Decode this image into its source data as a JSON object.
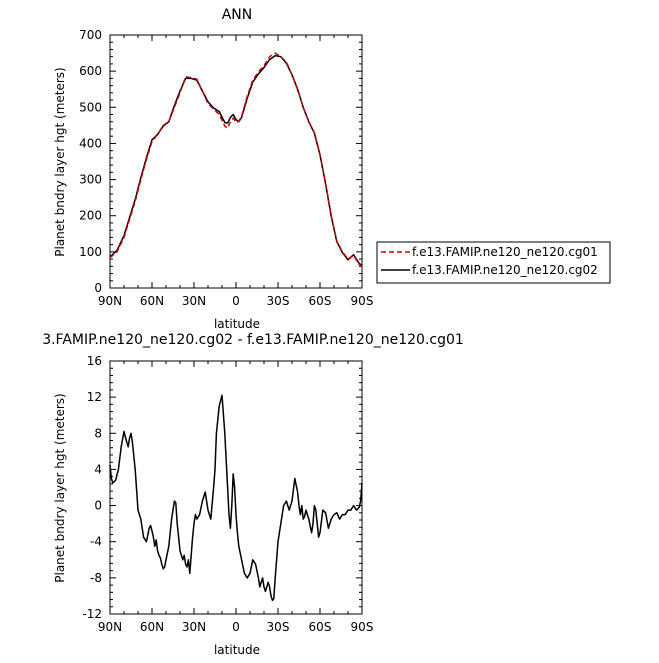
{
  "chart_data": [
    {
      "type": "line",
      "title": "ANN",
      "xlabel": "latitude",
      "ylabel": "Planet bndry layer hgt (meters)",
      "xlim": [
        90,
        -90
      ],
      "ylim": [
        0,
        700
      ],
      "x_ticks": [
        "90N",
        "60N",
        "30N",
        "0",
        "30S",
        "60S",
        "90S"
      ],
      "y_ticks": [
        "0",
        "100",
        "200",
        "300",
        "400",
        "500",
        "600",
        "700"
      ],
      "legend": "right",
      "series": [
        {
          "name": "f.e13.FAMIP.ne120_ne120.cg01",
          "color": "#cc0000",
          "dash": "dashed",
          "x": [
            90,
            85,
            80,
            76,
            72,
            68,
            64,
            60,
            56,
            52,
            48,
            44,
            40,
            36,
            32,
            28,
            24,
            20,
            16,
            12,
            8,
            6,
            4,
            2,
            0,
            -2,
            -4,
            -8,
            -12,
            -16,
            -20,
            -24,
            -28,
            -32,
            -36,
            -40,
            -44,
            -48,
            -52,
            -56,
            -60,
            -64,
            -68,
            -72,
            -76,
            -80,
            -84,
            -88,
            -90
          ],
          "y": [
            84,
            100,
            140,
            190,
            240,
            300,
            355,
            405,
            425,
            450,
            460,
            500,
            540,
            585,
            582,
            578,
            545,
            510,
            495,
            480,
            448,
            442,
            460,
            470,
            458,
            462,
            475,
            530,
            575,
            598,
            615,
            640,
            650,
            640,
            625,
            590,
            550,
            500,
            460,
            430,
            370,
            290,
            200,
            130,
            100,
            80,
            90,
            65,
            60
          ]
        },
        {
          "name": "f.e13.FAMIP.ne120_ne120.cg02",
          "color": "#000000",
          "dash": "solid",
          "x": [
            90,
            85,
            80,
            76,
            72,
            68,
            64,
            60,
            56,
            52,
            48,
            44,
            40,
            36,
            32,
            28,
            24,
            20,
            16,
            12,
            8,
            6,
            4,
            2,
            0,
            -2,
            -4,
            -8,
            -12,
            -16,
            -20,
            -24,
            -28,
            -32,
            -36,
            -40,
            -44,
            -48,
            -52,
            -56,
            -60,
            -64,
            -68,
            -72,
            -76,
            -80,
            -84,
            -88,
            -90
          ],
          "y": [
            86,
            104,
            145,
            195,
            245,
            305,
            360,
            410,
            425,
            448,
            460,
            505,
            545,
            580,
            580,
            575,
            545,
            515,
            498,
            488,
            458,
            456,
            472,
            480,
            466,
            460,
            472,
            525,
            570,
            592,
            610,
            632,
            643,
            640,
            622,
            590,
            550,
            500,
            460,
            428,
            368,
            288,
            198,
            128,
            98,
            78,
            92,
            68,
            62
          ]
        }
      ]
    },
    {
      "type": "line",
      "title": "3.FAMIP.ne120_ne120.cg02 - f.e13.FAMIP.ne120_ne120.cg01",
      "xlabel": "latitude",
      "ylabel": "Planet bndry layer hgt (meters)",
      "xlim": [
        90,
        -90
      ],
      "ylim": [
        -12,
        16
      ],
      "x_ticks": [
        "90N",
        "60N",
        "30N",
        "0",
        "30S",
        "60S",
        "90S"
      ],
      "y_ticks": [
        "-12",
        "-8",
        "-4",
        "0",
        "4",
        "8",
        "12",
        "16"
      ],
      "series": [
        {
          "color": "#000000",
          "dash": "solid",
          "x": [
            90,
            89,
            88,
            86,
            84,
            82,
            80,
            78,
            77,
            76,
            75,
            74,
            72,
            70,
            68,
            66,
            64,
            62,
            61,
            60,
            59,
            58,
            57,
            56,
            55,
            54,
            53,
            52,
            51,
            50,
            48,
            46,
            44,
            43,
            42,
            41,
            40,
            38,
            37,
            36,
            35,
            34,
            33,
            32,
            31,
            30,
            29,
            28,
            26,
            24,
            22,
            20,
            18,
            16,
            15,
            14,
            12,
            10,
            8,
            6,
            5,
            4,
            3,
            2,
            1,
            0,
            -1,
            -2,
            -4,
            -6,
            -8,
            -10,
            -12,
            -14,
            -16,
            -17,
            -18,
            -19,
            -20,
            -21,
            -22,
            -23,
            -24,
            -25,
            -26,
            -27,
            -28,
            -29,
            -30,
            -32,
            -34,
            -36,
            -38,
            -40,
            -42,
            -44,
            -45,
            -46,
            -47,
            -48,
            -49,
            -50,
            -52,
            -54,
            -55,
            -56,
            -57,
            -58,
            -59,
            -60,
            -62,
            -64,
            -66,
            -68,
            -70,
            -72,
            -74,
            -76,
            -78,
            -80,
            -82,
            -84,
            -86,
            -88,
            -89,
            -90
          ],
          "y": [
            4.5,
            3.0,
            2.5,
            2.8,
            4.0,
            6.5,
            8.2,
            7.0,
            6.5,
            7.5,
            8.0,
            7.0,
            4.0,
            -0.5,
            -1.5,
            -3.5,
            -4.0,
            -2.5,
            -2.2,
            -2.8,
            -3.5,
            -4.5,
            -3.8,
            -5.0,
            -5.5,
            -5.8,
            -6.5,
            -7.0,
            -6.8,
            -6.0,
            -4.5,
            -1.5,
            0.5,
            0.3,
            -2.0,
            -3.5,
            -5.0,
            -6.0,
            -5.5,
            -6.5,
            -6.8,
            -6.0,
            -7.5,
            -5.5,
            -3.5,
            -2.0,
            -1.0,
            -1.5,
            -1.0,
            0.5,
            1.5,
            -0.5,
            -1.5,
            2.0,
            4.0,
            8.0,
            11.0,
            12.2,
            8.0,
            2.0,
            -1.0,
            -2.5,
            0.0,
            3.5,
            2.0,
            -1.0,
            -3.0,
            -4.5,
            -6.0,
            -7.5,
            -8.0,
            -7.5,
            -6.0,
            -6.5,
            -8.0,
            -9.0,
            -8.5,
            -8.0,
            -9.0,
            -9.5,
            -9.0,
            -8.5,
            -9.0,
            -10.0,
            -10.5,
            -10.3,
            -8.0,
            -6.0,
            -4.0,
            -2.0,
            0.0,
            0.5,
            -0.5,
            0.5,
            3.0,
            1.5,
            0.0,
            -1.0,
            0.0,
            -1.5,
            -1.2,
            -0.5,
            -1.5,
            -3.0,
            -2.0,
            0.0,
            -0.5,
            -2.0,
            -3.5,
            -3.0,
            -0.5,
            -0.8,
            -2.5,
            -1.5,
            -1.0,
            -0.8,
            -1.5,
            -1.0,
            -1.0,
            -0.5,
            -0.5,
            0.0,
            -0.5,
            -0.2,
            0.5,
            2.5
          ]
        }
      ]
    }
  ]
}
